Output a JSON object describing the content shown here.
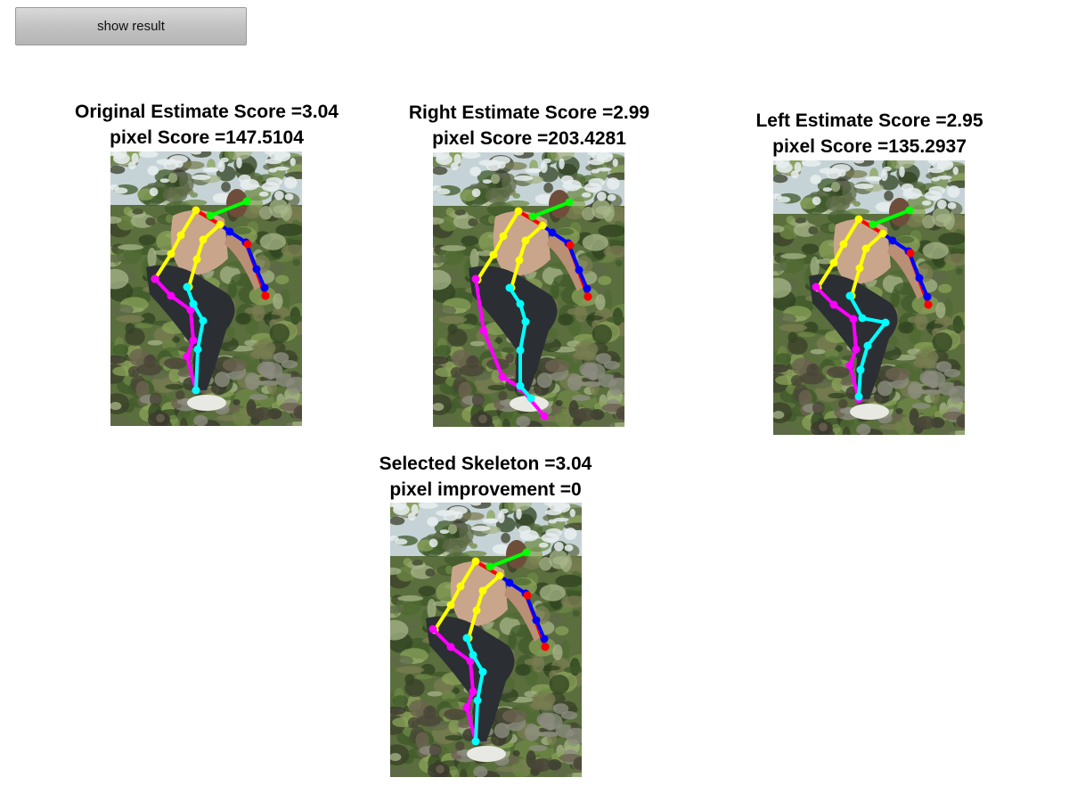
{
  "toolbar": {
    "show_result_label": "show result"
  },
  "limb_colors": {
    "torso_head": "#ff0000",
    "head": "#00ff00",
    "right_arm": "#0000ff",
    "left_arm": "#ffff00",
    "right_leg": "#00ffff",
    "left_leg": "#ff00ff"
  },
  "panels": {
    "original": {
      "title": "Original Estimate Score =3.04",
      "subtitle": "pixel Score =147.5104"
    },
    "right": {
      "title": "Right Estimate Score =2.99",
      "subtitle": "pixel Score =203.4281"
    },
    "left": {
      "title": "Left Estimate Score =2.95",
      "subtitle": "pixel Score =135.2937"
    },
    "selected": {
      "title": "Selected Skeleton =3.04",
      "subtitle": "pixel improvement =0"
    }
  }
}
